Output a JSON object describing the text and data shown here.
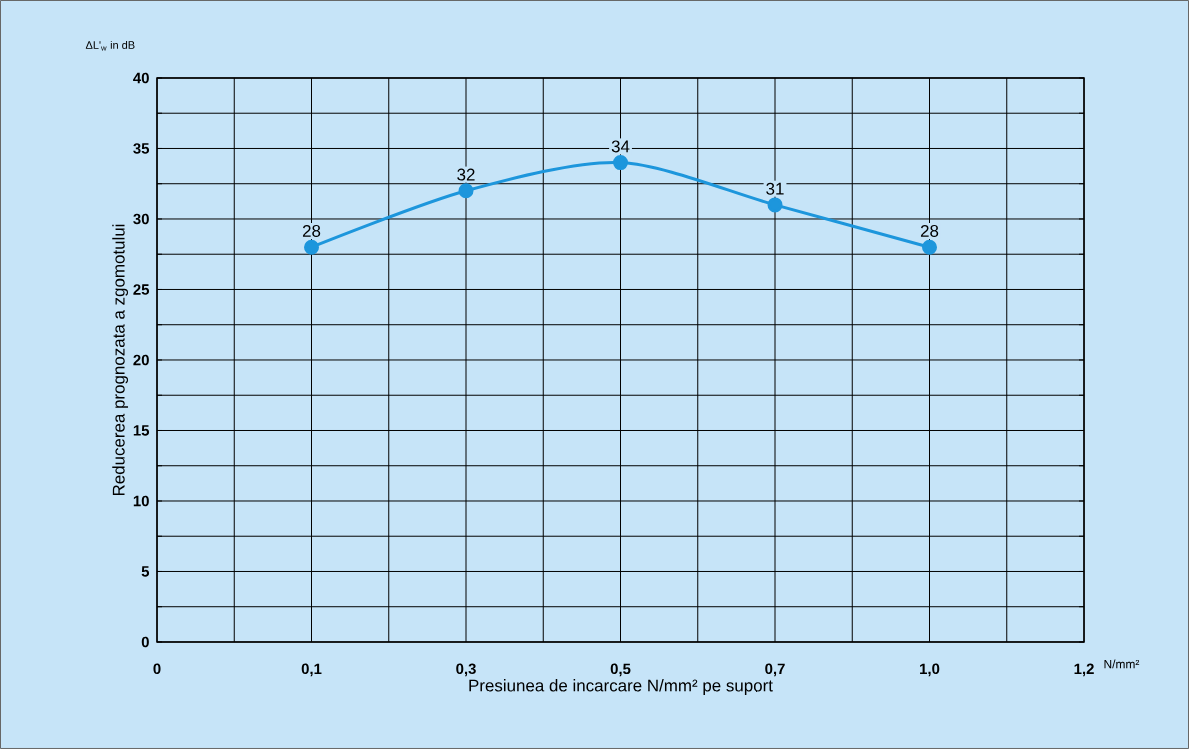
{
  "chart_data": {
    "type": "line",
    "ylabel": "Reducerea prognozata a zgomotului",
    "xlabel": "Presiunea de incarcare N/mm² pe suport",
    "annotations": [
      "ΔL'$_{w}$ in dB",
      "N/mm²"
    ],
    "categories": [
      "0",
      null,
      "0,1",
      null,
      "0,3",
      null,
      "0,5",
      null,
      "0,7",
      null,
      "1,0",
      null,
      "1,2"
    ],
    "values": [
      null,
      null,
      28,
      null,
      32,
      null,
      34,
      null,
      31,
      null,
      28,
      null,
      null
    ],
    "color": "#1d96dc",
    "ylim": [
      0,
      40
    ],
    "yticks": [
      0,
      {
        "value": 2.5,
        "label": null
      },
      5,
      {
        "value": 7.5,
        "label": null
      },
      10,
      {
        "value": 12.5,
        "label": null
      },
      15,
      {
        "value": 17.5,
        "label": null
      },
      20,
      {
        "value": 22.5,
        "label": null
      },
      25,
      {
        "value": 27.5,
        "label": null
      },
      30,
      {
        "value": 32.5,
        "label": null
      },
      35,
      {
        "value": 37.5,
        "label": null
      },
      40
    ],
    "grid": true,
    "marker": "circle",
    "line_style": "solid",
    "data_labels": true
  }
}
